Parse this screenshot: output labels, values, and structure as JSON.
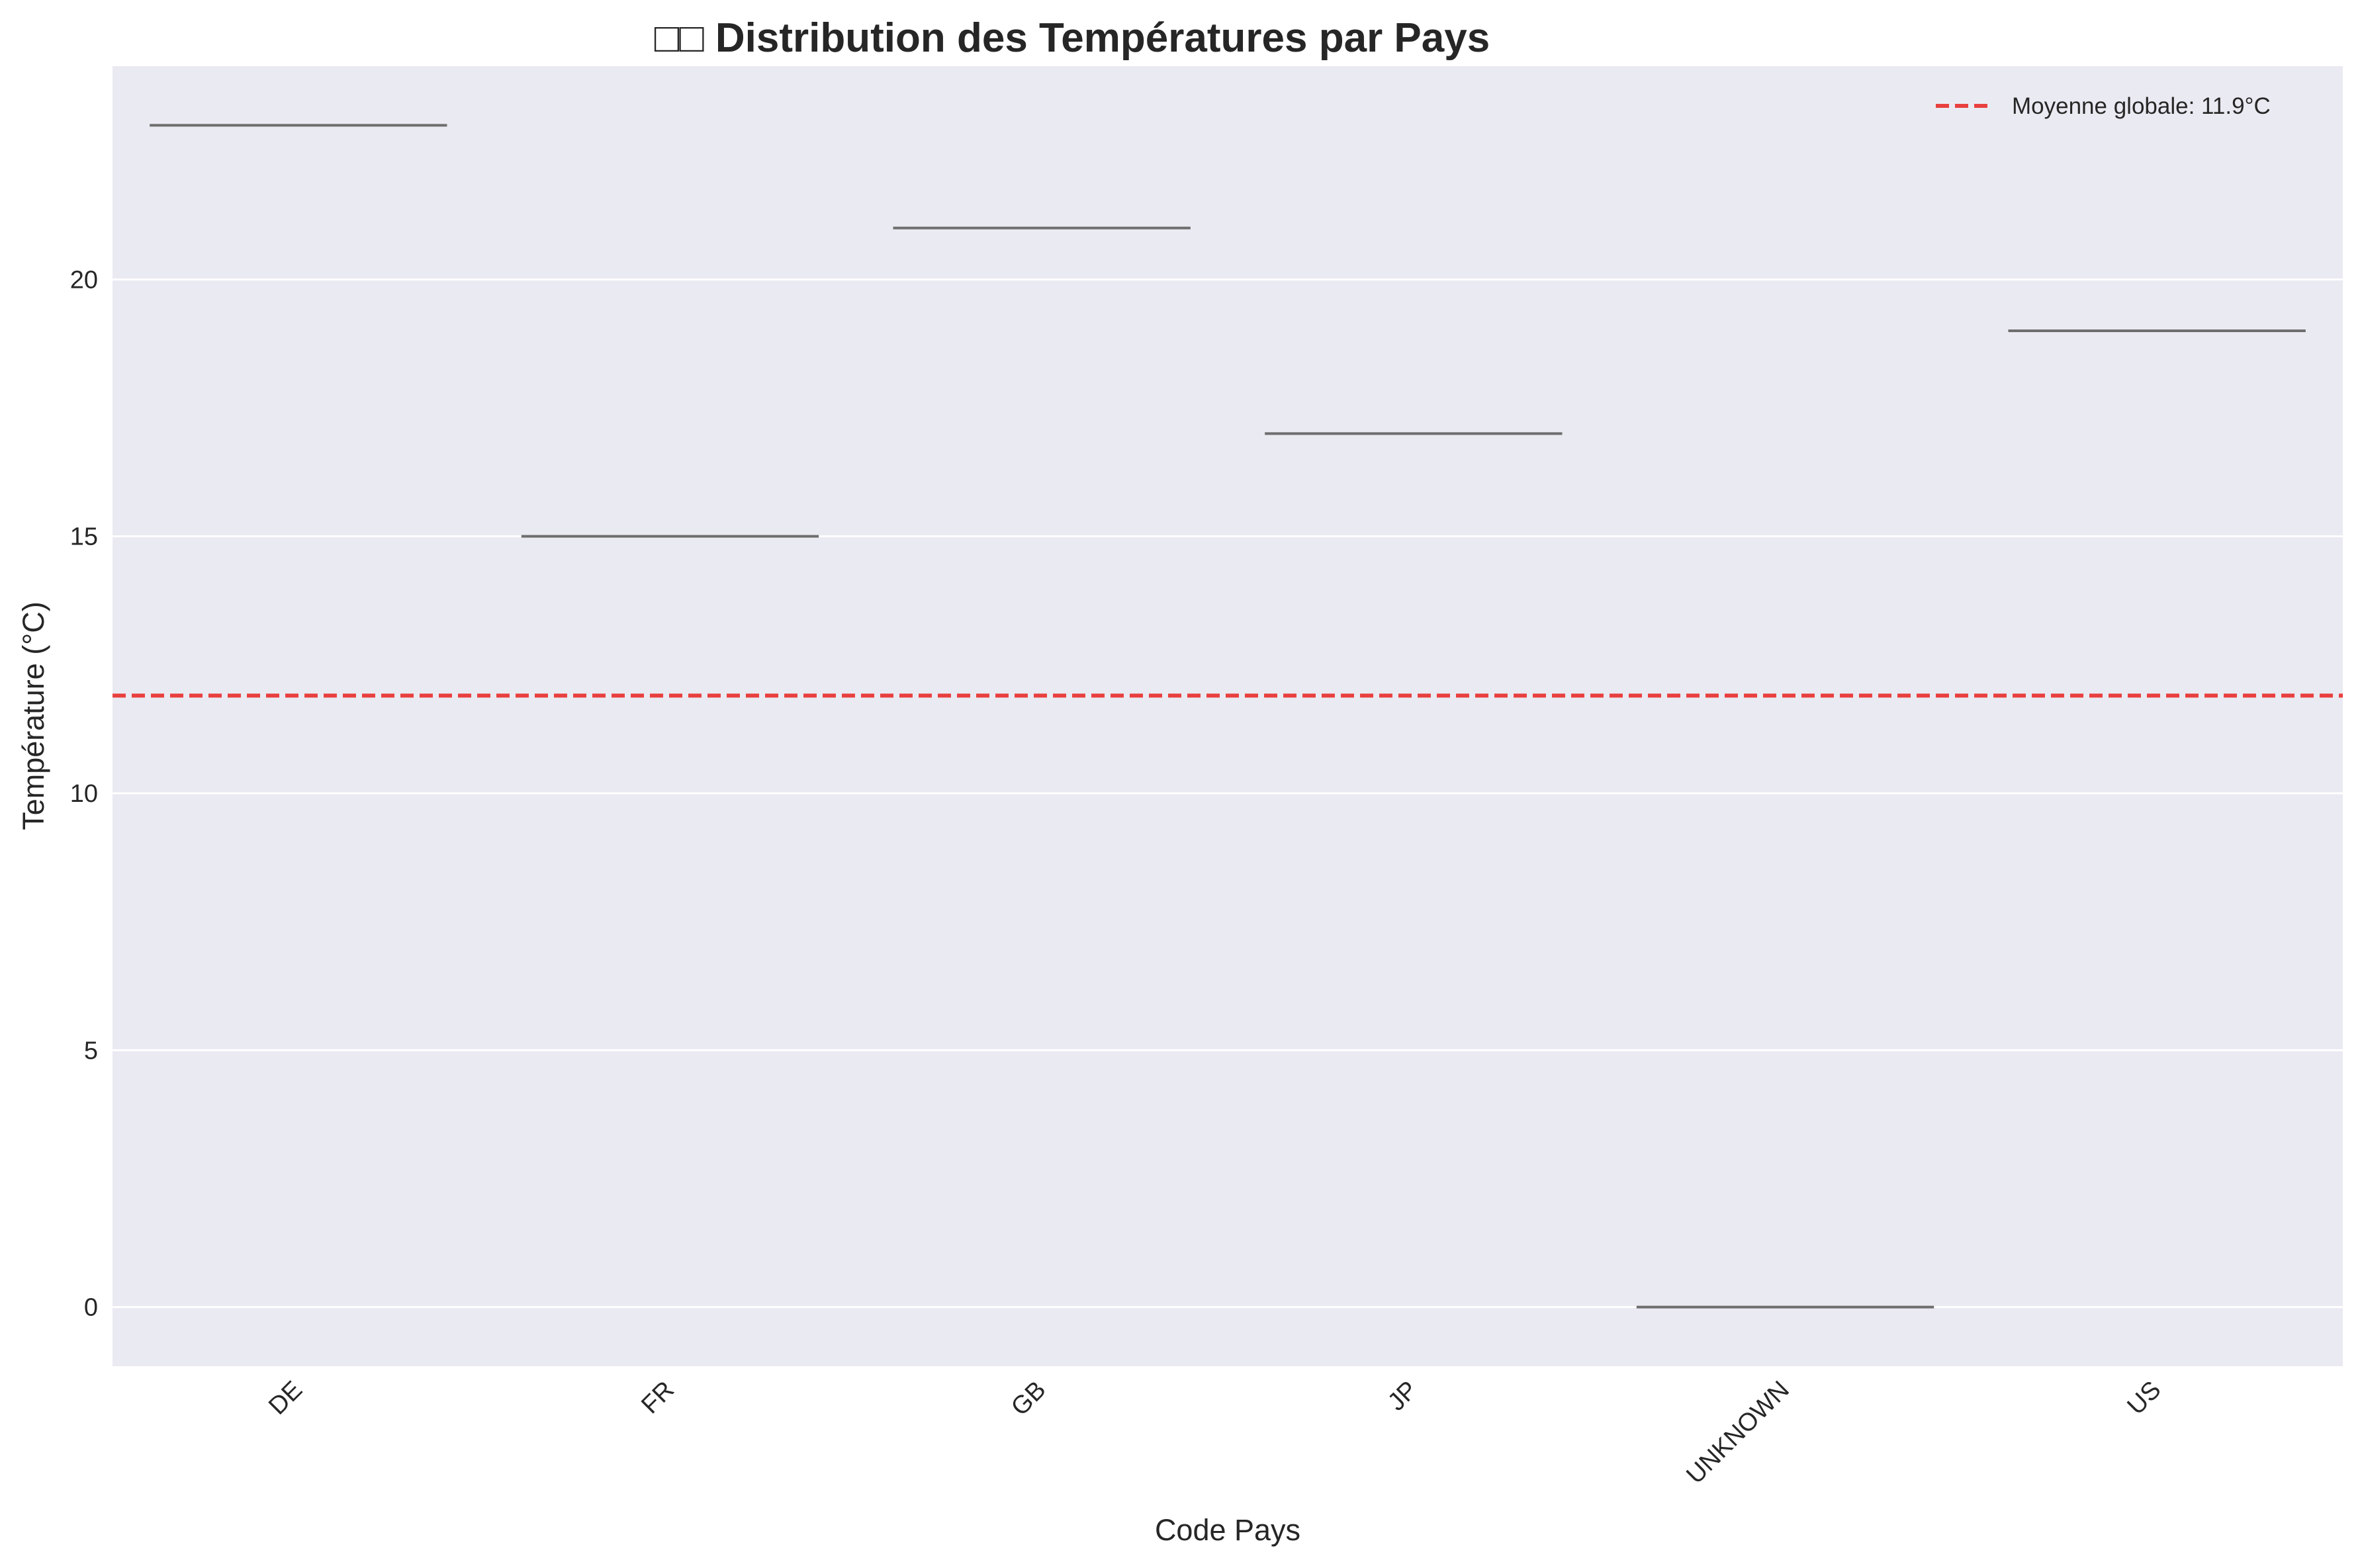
{
  "chart_data": {
    "type": "box",
    "title": "□□ Distribution des Températures par Pays",
    "xlabel": "Code Pays",
    "ylabel": "Température (°C)",
    "categories": [
      "DE",
      "FR",
      "GB",
      "JP",
      "UNKNOWN",
      "US"
    ],
    "values": [
      23,
      15,
      21,
      17,
      0,
      19
    ],
    "ylim": [
      -1.15,
      24.15
    ],
    "yticks": [
      0,
      5,
      10,
      15,
      20
    ],
    "grid": true,
    "reference_line": {
      "value": 11.9,
      "label": "Moyenne globale: 11.9°C",
      "color": "#e8403f",
      "style": "dashed"
    },
    "legend_position": "top-right",
    "colors": {
      "plot_background": "#eaeaf2",
      "grid": "#ffffff",
      "median_line": "#6e6e6e"
    }
  }
}
